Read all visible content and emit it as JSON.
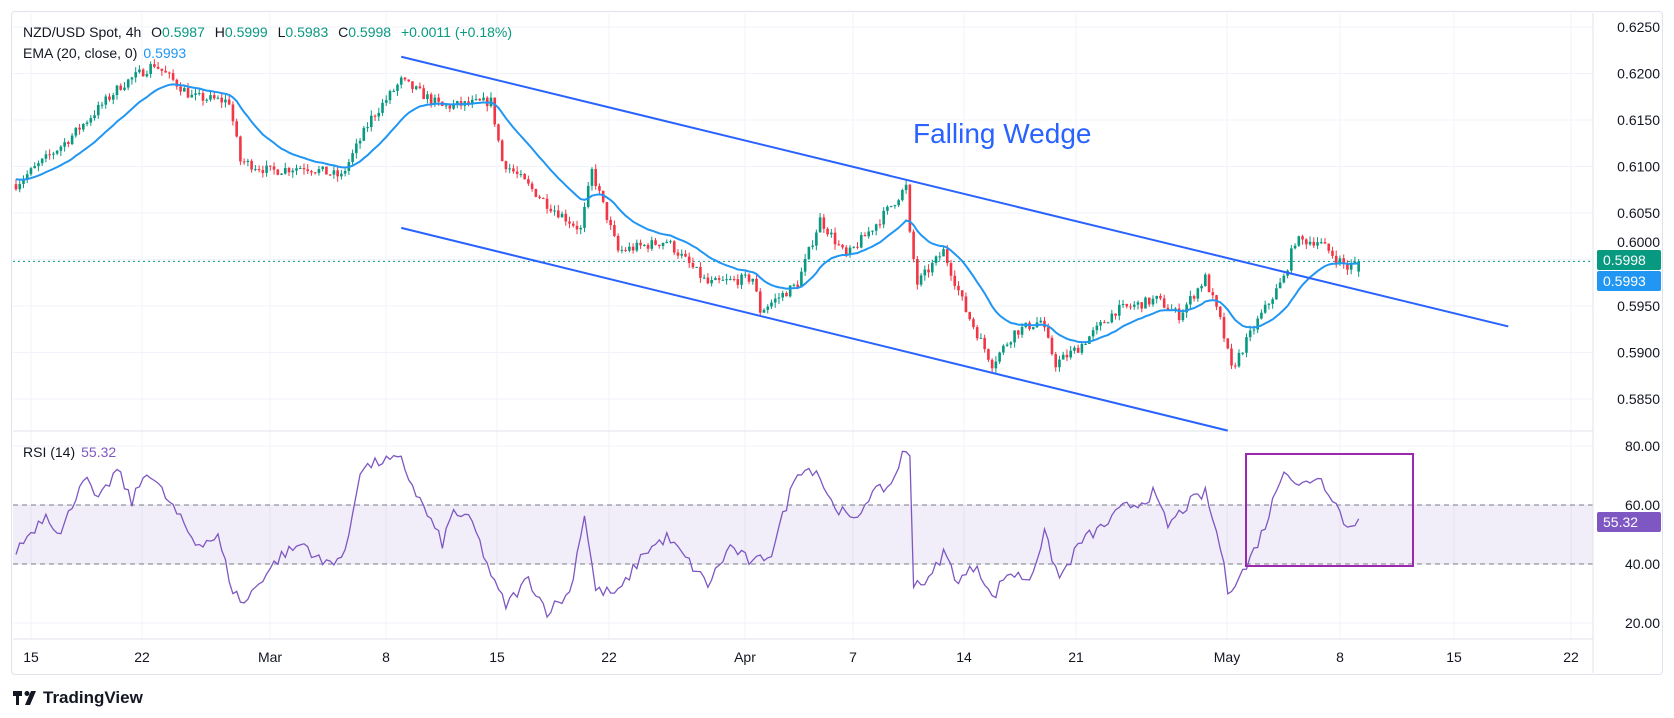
{
  "legend": {
    "symbol": "NZD/USD Spot, 4h",
    "open_label": "O",
    "open": "0.5987",
    "high_label": "H",
    "high": "0.5999",
    "low_label": "L",
    "low": "0.5983",
    "close_label": "C",
    "close": "0.5998",
    "change": "+0.0011 (+0.18%)",
    "ema_label": "EMA (20, close, 0)",
    "ema_value": "0.5993",
    "rsi_label": "RSI (14)",
    "rsi_value": "55.32"
  },
  "tags": {
    "price": "0.5998",
    "ema": "0.5993",
    "rsi": "55.32"
  },
  "colors": {
    "up": "#089981",
    "down": "#f23645",
    "ema": "#2196f3",
    "wedge": "#2962ff",
    "rsi": "#7e57c2",
    "box": "#9c27b0"
  },
  "brand": "TradingView",
  "chart_data": {
    "type": "candlestick",
    "title": "NZD/USD Spot, 4h",
    "annotation": "Falling Wedge",
    "price_ticks": [
      "0.6250",
      "0.6200",
      "0.6150",
      "0.6100",
      "0.6050",
      "0.6000",
      "0.5950",
      "0.5900",
      "0.5850"
    ],
    "price_range": [
      0.585,
      0.625
    ],
    "time_ticks": [
      "15",
      "22",
      "Mar",
      "8",
      "15",
      "22",
      "Apr",
      "7",
      "14",
      "21",
      "May",
      "8",
      "15",
      "22"
    ],
    "close_keypoints_bar_price": [
      [
        0,
        0.6081
      ],
      [
        14,
        0.6129
      ],
      [
        28,
        0.6187
      ],
      [
        37,
        0.621
      ],
      [
        47,
        0.6175
      ],
      [
        57,
        0.617
      ],
      [
        60,
        0.6106
      ],
      [
        68,
        0.6095
      ],
      [
        77,
        0.61
      ],
      [
        87,
        0.6089
      ],
      [
        95,
        0.6152
      ],
      [
        103,
        0.6192
      ],
      [
        114,
        0.6164
      ],
      [
        127,
        0.617
      ],
      [
        130,
        0.6106
      ],
      [
        142,
        0.606
      ],
      [
        151,
        0.6032
      ],
      [
        154,
        0.6095
      ],
      [
        161,
        0.6009
      ],
      [
        174,
        0.602
      ],
      [
        185,
        0.5974
      ],
      [
        197,
        0.598
      ],
      [
        199,
        0.5945
      ],
      [
        209,
        0.5974
      ],
      [
        215,
        0.6043
      ],
      [
        222,
        0.6003
      ],
      [
        231,
        0.6043
      ],
      [
        238,
        0.6078
      ],
      [
        239,
        0.6026
      ],
      [
        241,
        0.5974
      ],
      [
        248,
        0.6009
      ],
      [
        254,
        0.5945
      ],
      [
        261,
        0.5888
      ],
      [
        267,
        0.5922
      ],
      [
        274,
        0.5934
      ],
      [
        278,
        0.5888
      ],
      [
        284,
        0.5905
      ],
      [
        294,
        0.5945
      ],
      [
        305,
        0.5957
      ],
      [
        311,
        0.594
      ],
      [
        318,
        0.598
      ],
      [
        322,
        0.5934
      ],
      [
        325,
        0.5882
      ],
      [
        332,
        0.5934
      ],
      [
        339,
        0.598
      ],
      [
        342,
        0.602
      ],
      [
        348,
        0.602
      ],
      [
        356,
        0.5991
      ],
      [
        359,
        0.5998
      ]
    ],
    "ema_period": 20,
    "wedge_upper_bar_price": [
      [
        103,
        0.6218
      ],
      [
        399,
        0.5928
      ]
    ],
    "wedge_lower_bar_price": [
      [
        103,
        0.6034
      ],
      [
        324,
        0.5816
      ]
    ],
    "current_price": 0.5998,
    "rsi": {
      "period": 14,
      "ticks": [
        "80.00",
        "60.00",
        "40.00",
        "20.00"
      ],
      "range": [
        15,
        85
      ],
      "band": [
        40,
        60
      ],
      "keypoints_bar_value": [
        [
          0,
          44.6
        ],
        [
          8,
          57
        ],
        [
          12,
          50
        ],
        [
          18,
          70
        ],
        [
          22,
          61
        ],
        [
          27,
          72
        ],
        [
          31,
          61
        ],
        [
          35,
          72
        ],
        [
          42,
          59
        ],
        [
          48,
          47
        ],
        [
          54,
          49
        ],
        [
          58,
          31
        ],
        [
          61,
          26.5
        ],
        [
          65,
          34
        ],
        [
          71,
          43
        ],
        [
          77,
          47
        ],
        [
          82,
          40
        ],
        [
          88,
          43
        ],
        [
          92,
          72
        ],
        [
          98,
          75
        ],
        [
          103,
          75
        ],
        [
          107,
          64
        ],
        [
          114,
          47
        ],
        [
          117,
          58
        ],
        [
          122,
          54
        ],
        [
          128,
          33
        ],
        [
          131,
          26
        ],
        [
          137,
          35
        ],
        [
          142,
          24
        ],
        [
          148,
          30
        ],
        [
          152,
          57
        ],
        [
          155,
          31
        ],
        [
          161,
          30
        ],
        [
          168,
          44
        ],
        [
          174,
          49
        ],
        [
          179,
          42
        ],
        [
          185,
          33
        ],
        [
          191,
          46
        ],
        [
          197,
          40
        ],
        [
          202,
          44
        ],
        [
          209,
          72
        ],
        [
          214,
          72
        ],
        [
          218,
          61
        ],
        [
          224,
          54
        ],
        [
          228,
          63
        ],
        [
          234,
          67
        ],
        [
          237,
          77
        ],
        [
          239,
          77
        ],
        [
          240,
          34
        ],
        [
          244,
          34
        ],
        [
          248,
          44
        ],
        [
          252,
          34
        ],
        [
          257,
          40
        ],
        [
          261,
          28
        ],
        [
          265,
          37
        ],
        [
          271,
          35
        ],
        [
          275,
          50
        ],
        [
          279,
          35
        ],
        [
          285,
          48
        ],
        [
          291,
          53
        ],
        [
          296,
          59
        ],
        [
          301,
          61
        ],
        [
          304,
          64
        ],
        [
          308,
          53
        ],
        [
          314,
          61
        ],
        [
          318,
          64
        ],
        [
          322,
          46
        ],
        [
          324,
          31
        ],
        [
          329,
          39
        ],
        [
          334,
          53
        ],
        [
          339,
          73
        ],
        [
          343,
          66
        ],
        [
          348,
          70
        ],
        [
          352,
          63
        ],
        [
          356,
          52
        ],
        [
          359,
          55.32
        ]
      ]
    }
  }
}
